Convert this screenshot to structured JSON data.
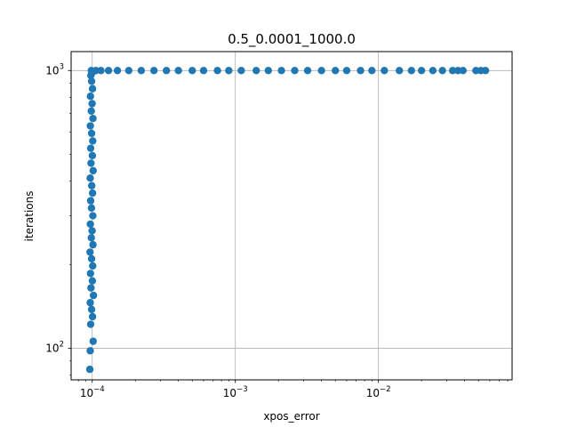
{
  "chart_data": {
    "type": "scatter",
    "title": "0.5_0.0001_1000.0",
    "xlabel": "xpos_error",
    "ylabel": "iterations",
    "x_scale": "log",
    "y_scale": "log",
    "xlim": [
      7.12e-05,
      0.0859
    ],
    "ylim": [
      77,
      1170
    ],
    "grid": true,
    "point_color": "#1f77b4",
    "x_ticks": [
      {
        "value": 0.0001,
        "base": "10",
        "exp": "−4"
      },
      {
        "value": 0.001,
        "base": "10",
        "exp": "−3"
      },
      {
        "value": 0.01,
        "base": "10",
        "exp": "−2"
      }
    ],
    "y_ticks": [
      {
        "value": 100,
        "base": "10",
        "exp": "2"
      },
      {
        "value": 1000,
        "base": "10",
        "exp": "3"
      }
    ],
    "series": [
      {
        "points": [
          [
            9.62e-05,
            84
          ],
          [
            9.68e-05,
            98
          ],
          [
            0.0001015,
            106
          ],
          [
            9.75e-05,
            122
          ],
          [
            0.0001005,
            130
          ],
          [
            9.9e-05,
            138
          ],
          [
            9.68e-05,
            146
          ],
          [
            0.000102,
            155
          ],
          [
            9.8e-05,
            165
          ],
          [
            0.0001002,
            175
          ],
          [
            9.72e-05,
            186
          ],
          [
            0.0001008,
            198
          ],
          [
            9.9e-05,
            210
          ],
          [
            9.65e-05,
            222
          ],
          [
            0.0001012,
            236
          ],
          [
            9.85e-05,
            250
          ],
          [
            9.98e-05,
            265
          ],
          [
            9.7e-05,
            280
          ],
          [
            0.000101,
            300
          ],
          [
            9.88e-05,
            320
          ],
          [
            9.75e-05,
            340
          ],
          [
            0.0001005,
            362
          ],
          [
            9.92e-05,
            385
          ],
          [
            9.68e-05,
            410
          ],
          [
            0.0001015,
            436
          ],
          [
            9.8e-05,
            464
          ],
          [
            0.0001002,
            494
          ],
          [
            9.75e-05,
            525
          ],
          [
            0.0001008,
            558
          ],
          [
            9.9e-05,
            594
          ],
          [
            9.7e-05,
            632
          ],
          [
            0.0001012,
            672
          ],
          [
            9.85e-05,
            715
          ],
          [
            9.98e-05,
            760
          ],
          [
            9.72e-05,
            808
          ],
          [
            0.0001005,
            860
          ],
          [
            9.9e-05,
            915
          ],
          [
            9.78e-05,
            960
          ],
          [
            0.0001002,
            985
          ],
          [
            9.85e-05,
            1000
          ],
          [
            0.000106,
            1000
          ],
          [
            0.000115,
            1000
          ],
          [
            0.00013,
            1000
          ],
          [
            0.00015,
            1000
          ],
          [
            0.00018,
            1000
          ],
          [
            0.00022,
            1000
          ],
          [
            0.00027,
            1000
          ],
          [
            0.00033,
            1000
          ],
          [
            0.0004,
            1000
          ],
          [
            0.0005,
            1000
          ],
          [
            0.0006,
            1000
          ],
          [
            0.00075,
            1000
          ],
          [
            0.0009,
            1000
          ],
          [
            0.0011,
            1000
          ],
          [
            0.0014,
            1000
          ],
          [
            0.0017,
            1000
          ],
          [
            0.0021,
            1000
          ],
          [
            0.0026,
            1000
          ],
          [
            0.0032,
            1000
          ],
          [
            0.004,
            1000
          ],
          [
            0.005,
            1000
          ],
          [
            0.006,
            1000
          ],
          [
            0.0075,
            1000
          ],
          [
            0.009,
            1000
          ],
          [
            0.011,
            1000
          ],
          [
            0.014,
            1000
          ],
          [
            0.017,
            1000
          ],
          [
            0.02,
            1000
          ],
          [
            0.024,
            1000
          ],
          [
            0.028,
            1000
          ],
          [
            0.033,
            1000
          ],
          [
            0.036,
            1000
          ],
          [
            0.039,
            1000
          ],
          [
            0.048,
            1000
          ],
          [
            0.052,
            1000
          ],
          [
            0.056,
            1000
          ]
        ]
      }
    ]
  }
}
